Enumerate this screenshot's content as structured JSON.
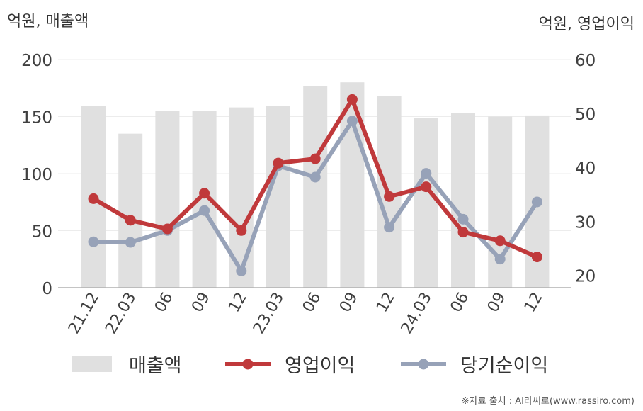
{
  "chart_data": {
    "type": "bar+line",
    "left_axis_unit": "억원, 매출액",
    "right_axis_unit": "억원, 영업이익",
    "categories": [
      "21.12",
      "22.03",
      "06",
      "09",
      "12",
      "23.03",
      "06",
      "09",
      "12",
      "24.03",
      "06",
      "09",
      "12"
    ],
    "left_axis": {
      "ylim": [
        0,
        200
      ],
      "ticks": [
        "0",
        "50",
        "100",
        "150",
        "200"
      ]
    },
    "right_axis": {
      "ylim": [
        17.7,
        60
      ],
      "ticks": [
        "20",
        "30",
        "40",
        "50",
        "60"
      ]
    },
    "grid": true,
    "legend_position": "bottom",
    "series": [
      {
        "name": "매출액",
        "type": "bar",
        "axis": "left",
        "color": "#e0e0e0",
        "values": [
          159,
          135,
          155,
          155,
          158,
          159,
          177,
          180,
          168,
          149,
          153,
          150,
          151
        ]
      },
      {
        "name": "영업이익",
        "type": "line",
        "axis": "right",
        "color": "#c0393b",
        "values": [
          34.2,
          30.2,
          28.6,
          35.2,
          28.3,
          40.8,
          41.6,
          52.6,
          34.6,
          36.4,
          28.0,
          26.4,
          23.4
        ]
      },
      {
        "name": "당기순이익",
        "type": "line",
        "axis": "right",
        "color": "#97a2b8",
        "values": [
          26.2,
          26.1,
          28.3,
          32.0,
          20.8,
          40.3,
          38.2,
          48.6,
          28.9,
          38.9,
          30.4,
          23.0,
          33.6
        ]
      }
    ]
  },
  "source": "※자료 출처 : AI라씨로(www.rassiro.com)"
}
